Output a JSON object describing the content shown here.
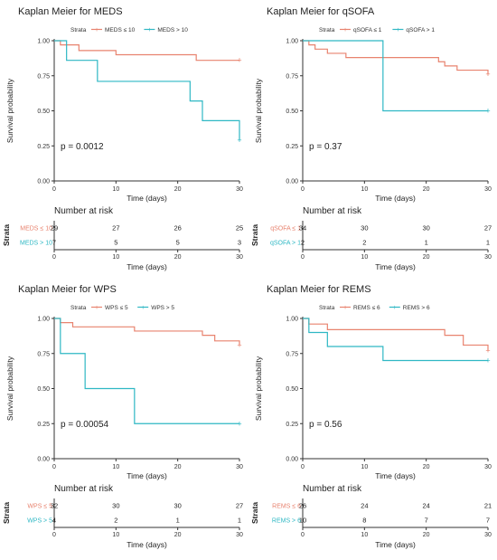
{
  "colors": {
    "low": "#e8836f",
    "high": "#2fb8c4",
    "axis": "#333333",
    "grid": "#cccccc"
  },
  "common": {
    "ylabel": "Survival probability",
    "xlabel": "Time (days)",
    "risk_title": "Number at risk",
    "strata_label": "Strata",
    "y_ticks": [
      "0.00",
      "0.25",
      "0.50",
      "0.75",
      "1.00"
    ],
    "x_ticks": [
      "0",
      "10",
      "20",
      "30"
    ]
  },
  "chart_data": [
    {
      "type": "line",
      "title": "Kaplan Meier for MEDS",
      "xlim": [
        0,
        30
      ],
      "ylim": [
        0,
        1
      ],
      "pvalue": "p = 0.0012",
      "series": [
        {
          "name": "MEDS ≤ 10",
          "color": "#e8836f",
          "x": [
            0,
            1,
            2,
            4,
            7,
            10,
            14,
            17,
            20,
            23,
            30
          ],
          "y": [
            1.0,
            0.97,
            0.97,
            0.93,
            0.93,
            0.9,
            0.9,
            0.9,
            0.9,
            0.86,
            0.86
          ],
          "risk": [
            "29",
            "27",
            "26",
            "25"
          ]
        },
        {
          "name": "MEDS > 10",
          "color": "#2fb8c4",
          "x": [
            0,
            1,
            2,
            7,
            22,
            24,
            30
          ],
          "y": [
            1.0,
            1.0,
            0.86,
            0.71,
            0.57,
            0.43,
            0.29
          ],
          "risk": [
            "7",
            "5",
            "5",
            "3"
          ]
        }
      ]
    },
    {
      "type": "line",
      "title": "Kaplan Meier for qSOFA",
      "xlim": [
        0,
        30
      ],
      "ylim": [
        0,
        1
      ],
      "pvalue": "p = 0.37",
      "series": [
        {
          "name": "qSOFA ≤ 1",
          "color": "#e8836f",
          "x": [
            0,
            1,
            2,
            4,
            7,
            22,
            23,
            25,
            30
          ],
          "y": [
            1.0,
            0.97,
            0.94,
            0.91,
            0.88,
            0.85,
            0.82,
            0.79,
            0.76
          ],
          "risk": [
            "34",
            "30",
            "30",
            "27"
          ]
        },
        {
          "name": "qSOFA > 1",
          "color": "#2fb8c4",
          "x": [
            0,
            13,
            30
          ],
          "y": [
            1.0,
            0.5,
            0.5
          ],
          "risk": [
            "2",
            "2",
            "1",
            "1"
          ]
        }
      ]
    },
    {
      "type": "line",
      "title": "Kaplan Meier for WPS",
      "xlim": [
        0,
        30
      ],
      "ylim": [
        0,
        1
      ],
      "pvalue": "p = 0.00054",
      "series": [
        {
          "name": "WPS ≤ 5",
          "color": "#e8836f",
          "x": [
            0,
            1,
            3,
            13,
            24,
            26,
            30
          ],
          "y": [
            1.0,
            0.97,
            0.94,
            0.91,
            0.88,
            0.84,
            0.81
          ],
          "risk": [
            "32",
            "30",
            "30",
            "27"
          ]
        },
        {
          "name": "WPS > 5",
          "color": "#2fb8c4",
          "x": [
            0,
            1,
            5,
            13,
            30
          ],
          "y": [
            1.0,
            0.75,
            0.5,
            0.25,
            0.25
          ],
          "risk": [
            "4",
            "2",
            "1",
            "1"
          ]
        }
      ]
    },
    {
      "type": "line",
      "title": "Kaplan Meier for REMS",
      "xlim": [
        0,
        30
      ],
      "ylim": [
        0,
        1
      ],
      "pvalue": "p = 0.56",
      "series": [
        {
          "name": "REMS ≤ 6",
          "color": "#e8836f",
          "x": [
            0,
            1,
            2,
            4,
            23,
            26,
            30
          ],
          "y": [
            1.0,
            0.96,
            0.96,
            0.92,
            0.88,
            0.81,
            0.77
          ],
          "risk": [
            "26",
            "24",
            "24",
            "21"
          ]
        },
        {
          "name": "REMS > 6",
          "color": "#2fb8c4",
          "x": [
            0,
            1,
            4,
            13,
            30
          ],
          "y": [
            1.0,
            0.9,
            0.8,
            0.7,
            0.7
          ],
          "risk": [
            "10",
            "8",
            "7",
            "7"
          ]
        }
      ]
    }
  ]
}
